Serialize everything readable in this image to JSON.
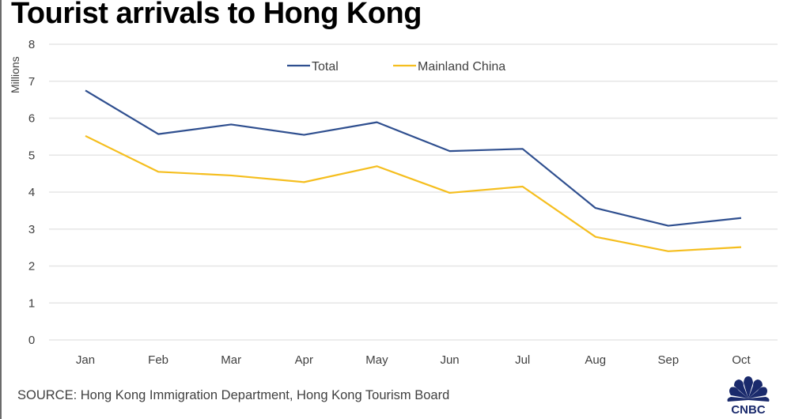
{
  "header": {
    "title": "Tourist arrivals to Hong Kong"
  },
  "footer": {
    "source": "SOURCE: Hong Kong Immigration Department, Hong Kong Tourism Board",
    "logo": "CNBC"
  },
  "colors": {
    "total": "#2F4F8F",
    "mainland": "#F5BE1E",
    "grid": "#E6E6E6"
  },
  "chart_data": {
    "type": "line",
    "title": "Tourist arrivals to Hong Kong",
    "xlabel": "",
    "ylabel": "Millions",
    "categories": [
      "Jan",
      "Feb",
      "Mar",
      "Apr",
      "May",
      "Jun",
      "Jul",
      "Aug",
      "Sep",
      "Oct"
    ],
    "yticks": [
      0,
      1,
      2,
      3,
      4,
      5,
      6,
      7,
      8
    ],
    "ylim": [
      0,
      8
    ],
    "grid": true,
    "legend_position": "top-center",
    "series": [
      {
        "name": "Total",
        "color": "#2F4F8F",
        "values": [
          6.75,
          5.57,
          5.83,
          5.55,
          5.89,
          5.11,
          5.17,
          3.57,
          3.09,
          3.3
        ]
      },
      {
        "name": "Mainland China",
        "color": "#F5BE1E",
        "values": [
          5.52,
          4.55,
          4.45,
          4.27,
          4.7,
          3.98,
          4.15,
          2.79,
          2.4,
          2.51
        ]
      }
    ]
  }
}
